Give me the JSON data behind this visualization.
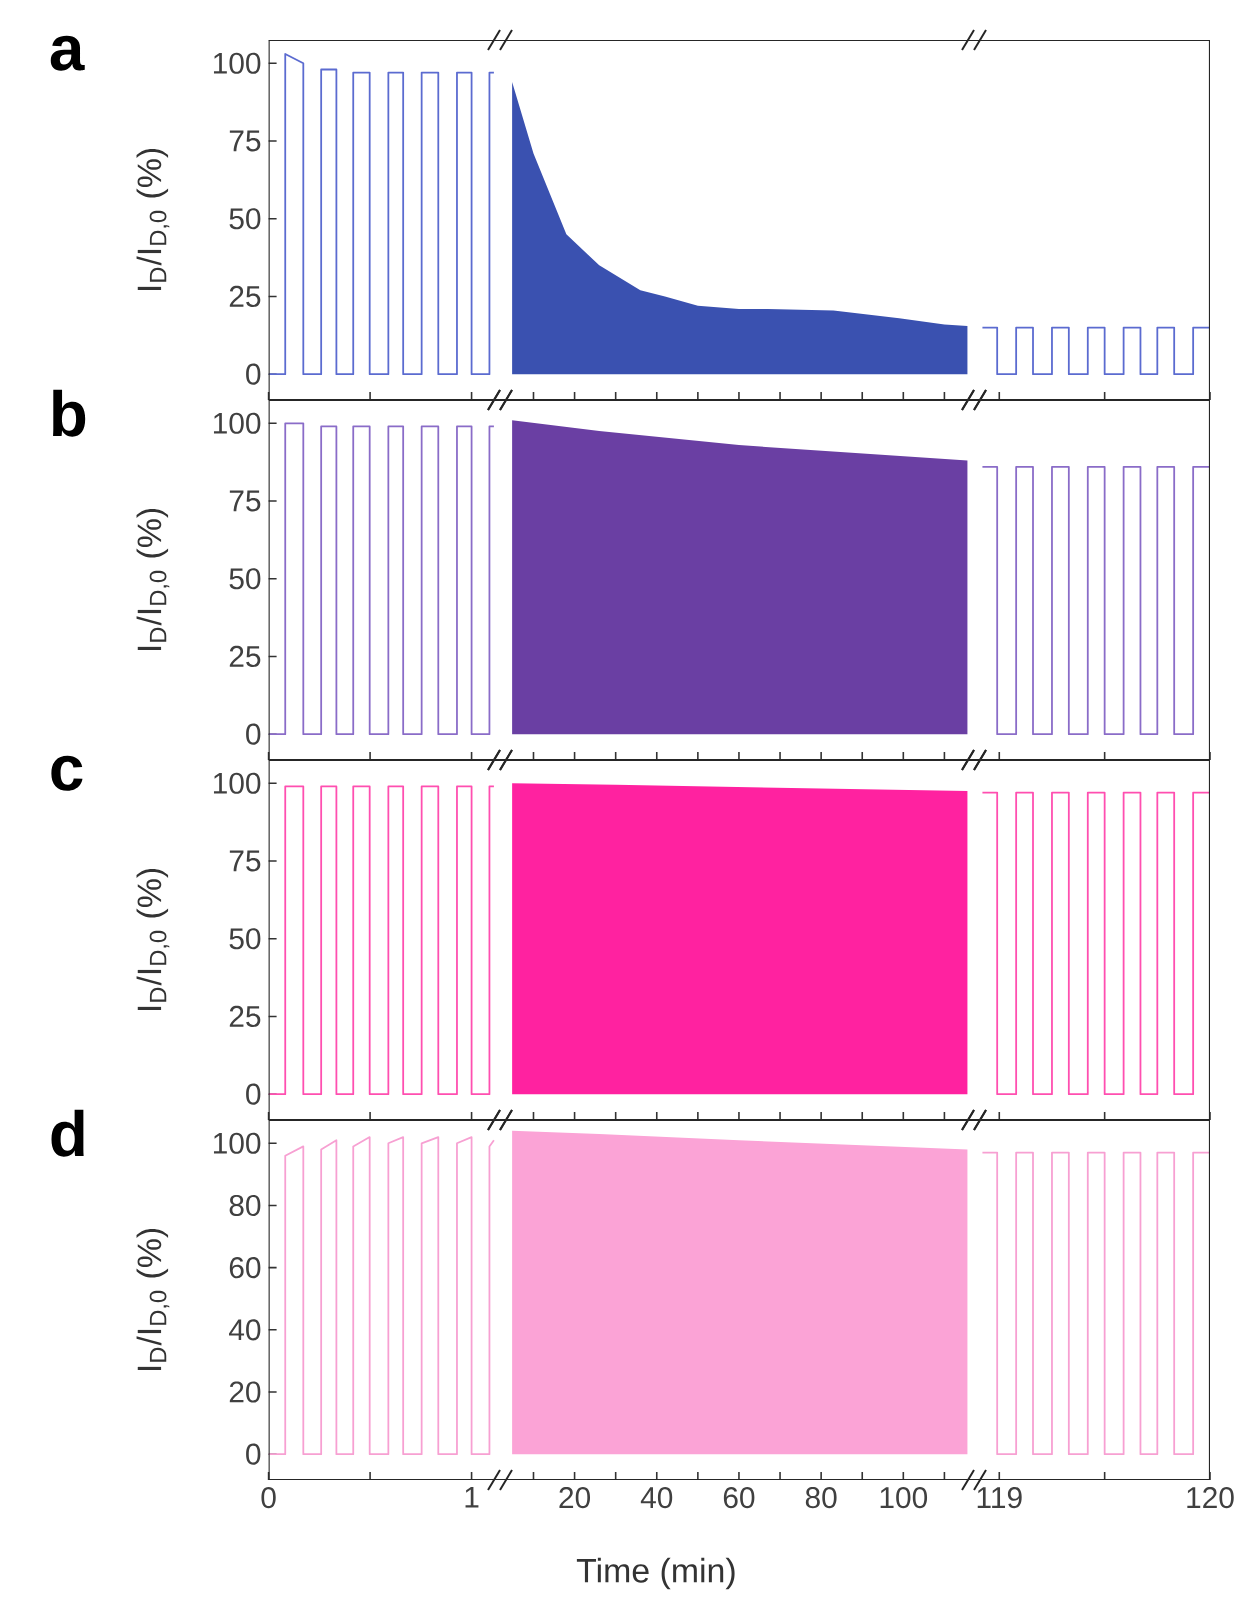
{
  "chart_data": [
    {
      "type": "line",
      "title": "a",
      "ylabel": "I$_{D}$/I$_{D,0}$ (%)",
      "x": [
        0,
        0.082,
        0.082,
        0.171,
        0.171,
        0.259,
        0.259,
        0.334,
        0.334,
        0.417,
        0.417,
        0.498,
        0.498,
        0.59,
        0.59,
        0.663,
        0.663,
        0.754,
        0.754,
        0.836,
        0.836,
        0.928,
        0.928,
        1.0,
        1.0,
        1.088,
        1.088,
        1.11
      ],
      "series": [
        {
          "color": "#5b6bd0",
          "values": [
            0,
            0,
            103,
            100,
            0,
            0,
            98,
            98,
            0,
            0,
            97,
            97,
            0,
            0,
            97,
            97,
            0,
            0,
            97,
            97,
            0,
            0,
            97,
            97,
            0,
            0,
            97,
            97
          ]
        }
      ],
      "xlim": [
        0,
        1.14
      ],
      "ylim": [
        -8.3,
        107.5
      ],
      "xticks": [
        0,
        {
          "value": 0.5,
          "label": null
        },
        1
      ],
      "yticks": [
        0,
        25,
        50,
        75,
        100
      ],
      "tick_labels": "y"
    },
    {
      "type": "area",
      "x": [
        4.8,
        10,
        18,
        26,
        36,
        42,
        50,
        60,
        67,
        83,
        99,
        110,
        115.6
      ],
      "series": [
        {
          "color": "#3a51b0",
          "values": [
            94,
            71,
            45,
            35,
            27,
            25,
            22,
            21,
            21,
            20.5,
            18,
            16,
            15.5
          ]
        }
      ],
      "xlim": [
        1.85,
        117.2
      ],
      "ylim": [
        -8.3,
        107.5
      ],
      "xticks": [
        {
          "value": 10,
          "label": null
        },
        20,
        {
          "value": 30,
          "label": null
        },
        40,
        {
          "value": 50,
          "label": null
        },
        60,
        {
          "value": 70,
          "label": null
        },
        80,
        {
          "value": 90,
          "label": null
        },
        100,
        {
          "value": 110,
          "label": null
        }
      ],
      "yticks": [
        0,
        25,
        50,
        75,
        100
      ],
      "tick_labels": false
    },
    {
      "type": "line",
      "x": [
        118.92,
        118.99,
        118.99,
        119.08,
        119.08,
        119.16,
        119.16,
        119.25,
        119.25,
        119.33,
        119.33,
        119.42,
        119.42,
        119.5,
        119.5,
        119.59,
        119.59,
        119.67,
        119.67,
        119.75,
        119.75,
        119.83,
        119.83,
        119.92,
        119.92,
        120
      ],
      "series": [
        {
          "color": "#5b6bd0",
          "values": [
            15,
            15,
            0,
            0,
            15,
            15,
            0,
            0,
            15,
            15,
            0,
            0,
            15,
            15,
            0,
            0,
            15,
            15,
            0,
            0,
            15,
            15,
            0,
            0,
            15,
            15
          ]
        }
      ],
      "xlim": [
        118.88,
        120
      ],
      "ylim": [
        -8.3,
        107.5
      ],
      "xticks": [
        119,
        {
          "value": 119.5,
          "label": null
        },
        120
      ],
      "yticks": [
        0,
        25,
        50,
        75,
        100
      ],
      "tick_labels": false
    },
    {
      "type": "line",
      "title": "b",
      "ylabel": "I$_{D}$/I$_{D,0}$ (%)",
      "x": [
        0,
        0.082,
        0.082,
        0.171,
        0.171,
        0.259,
        0.259,
        0.334,
        0.334,
        0.417,
        0.417,
        0.498,
        0.498,
        0.59,
        0.59,
        0.663,
        0.663,
        0.754,
        0.754,
        0.836,
        0.836,
        0.928,
        0.928,
        1.0,
        1.0,
        1.088,
        1.088,
        1.11
      ],
      "series": [
        {
          "color": "#8a6cc8",
          "values": [
            0,
            0,
            100,
            100,
            0,
            0,
            99,
            99,
            0,
            0,
            99,
            99,
            0,
            0,
            99,
            99,
            0,
            0,
            99,
            99,
            0,
            0,
            99,
            99,
            0,
            0,
            99,
            99
          ]
        }
      ],
      "xlim": [
        0,
        1.14
      ],
      "ylim": [
        -8.3,
        107.5
      ],
      "xticks": [
        0,
        {
          "value": 0.5,
          "label": null
        },
        1
      ],
      "yticks": [
        0,
        25,
        50,
        75,
        100
      ],
      "tick_labels": "y"
    },
    {
      "type": "area",
      "x": [
        4.8,
        26,
        60,
        115.6
      ],
      "series": [
        {
          "color": "#6a3fa3",
          "values": [
            101,
            97.5,
            93,
            88
          ]
        }
      ],
      "xlim": [
        1.85,
        117.2
      ],
      "ylim": [
        -8.3,
        107.5
      ],
      "xticks": [
        {
          "value": 10,
          "label": null
        },
        20,
        {
          "value": 30,
          "label": null
        },
        40,
        {
          "value": 50,
          "label": null
        },
        60,
        {
          "value": 70,
          "label": null
        },
        80,
        {
          "value": 90,
          "label": null
        },
        100,
        {
          "value": 110,
          "label": null
        }
      ],
      "yticks": [
        0,
        25,
        50,
        75,
        100
      ],
      "tick_labels": false
    },
    {
      "type": "line",
      "x": [
        118.92,
        118.99,
        118.99,
        119.08,
        119.08,
        119.16,
        119.16,
        119.25,
        119.25,
        119.33,
        119.33,
        119.42,
        119.42,
        119.5,
        119.5,
        119.59,
        119.59,
        119.67,
        119.67,
        119.75,
        119.75,
        119.83,
        119.83,
        119.92,
        119.92,
        120
      ],
      "series": [
        {
          "color": "#8a6cc8",
          "values": [
            86,
            86,
            0,
            0,
            86,
            86,
            0,
            0,
            86,
            86,
            0,
            0,
            86,
            86,
            0,
            0,
            86,
            86,
            0,
            0,
            86,
            86,
            0,
            0,
            86,
            86
          ]
        }
      ],
      "xlim": [
        118.88,
        120
      ],
      "ylim": [
        -8.3,
        107.5
      ],
      "xticks": [
        119,
        {
          "value": 119.5,
          "label": null
        },
        120
      ],
      "yticks": [
        0,
        25,
        50,
        75,
        100
      ],
      "tick_labels": false
    },
    {
      "type": "line",
      "title": "c",
      "ylabel": "I$_{D}$/I$_{D,0}$ (%)",
      "x": [
        0,
        0.082,
        0.082,
        0.171,
        0.171,
        0.259,
        0.259,
        0.334,
        0.334,
        0.417,
        0.417,
        0.498,
        0.498,
        0.59,
        0.59,
        0.663,
        0.663,
        0.754,
        0.754,
        0.836,
        0.836,
        0.928,
        0.928,
        1.0,
        1.0,
        1.088,
        1.088,
        1.11
      ],
      "series": [
        {
          "color": "#ff4fb0",
          "values": [
            0,
            0,
            99,
            99,
            0,
            0,
            99,
            99,
            0,
            0,
            99,
            99,
            0,
            0,
            99,
            99,
            0,
            0,
            99,
            99,
            0,
            0,
            99,
            99,
            0,
            0,
            99,
            99
          ]
        }
      ],
      "xlim": [
        0,
        1.14
      ],
      "ylim": [
        -8.3,
        107.5
      ],
      "xticks": [
        0,
        {
          "value": 0.5,
          "label": null
        },
        1
      ],
      "yticks": [
        0,
        25,
        50,
        75,
        100
      ],
      "tick_labels": "y"
    },
    {
      "type": "area",
      "x": [
        4.8,
        30,
        115.6
      ],
      "series": [
        {
          "color": "#ff22a0",
          "values": [
            100,
            99.5,
            97.5
          ]
        }
      ],
      "xlim": [
        1.85,
        117.2
      ],
      "ylim": [
        -8.3,
        107.5
      ],
      "xticks": [
        {
          "value": 10,
          "label": null
        },
        20,
        {
          "value": 30,
          "label": null
        },
        40,
        {
          "value": 50,
          "label": null
        },
        60,
        {
          "value": 70,
          "label": null
        },
        80,
        {
          "value": 90,
          "label": null
        },
        100,
        {
          "value": 110,
          "label": null
        }
      ],
      "yticks": [
        0,
        25,
        50,
        75,
        100
      ],
      "tick_labels": false
    },
    {
      "type": "line",
      "x": [
        118.92,
        118.99,
        118.99,
        119.08,
        119.08,
        119.16,
        119.16,
        119.25,
        119.25,
        119.33,
        119.33,
        119.42,
        119.42,
        119.5,
        119.5,
        119.59,
        119.59,
        119.67,
        119.67,
        119.75,
        119.75,
        119.83,
        119.83,
        119.92,
        119.92,
        120
      ],
      "series": [
        {
          "color": "#ff4fb0",
          "values": [
            97,
            97,
            0,
            0,
            97,
            97,
            0,
            0,
            97,
            97,
            0,
            0,
            97,
            97,
            0,
            0,
            97,
            97,
            0,
            0,
            97,
            97,
            0,
            0,
            97,
            97
          ]
        }
      ],
      "xlim": [
        118.88,
        120
      ],
      "ylim": [
        -8.3,
        107.5
      ],
      "xticks": [
        119,
        {
          "value": 119.5,
          "label": null
        },
        120
      ],
      "yticks": [
        0,
        25,
        50,
        75,
        100
      ],
      "tick_labels": false
    },
    {
      "type": "line",
      "title": "d",
      "ylabel": "I$_{D}$/I$_{D,0}$ (%)",
      "x": [
        0,
        0.082,
        0.082,
        0.171,
        0.171,
        0.259,
        0.259,
        0.334,
        0.334,
        0.417,
        0.417,
        0.498,
        0.498,
        0.59,
        0.59,
        0.663,
        0.663,
        0.754,
        0.754,
        0.836,
        0.836,
        0.928,
        0.928,
        1.0,
        1.0,
        1.088,
        1.088,
        1.11
      ],
      "series": [
        {
          "color": "#f7a0d2",
          "values": [
            0,
            0,
            96,
            99,
            0,
            0,
            98,
            101,
            0,
            0,
            99,
            102,
            0,
            0,
            100,
            102,
            0,
            0,
            100,
            102,
            0,
            0,
            100,
            102,
            0,
            0,
            99,
            101
          ]
        }
      ],
      "xlim": [
        0,
        1.14
      ],
      "ylim": [
        -8.3,
        107.5
      ],
      "xticks": [
        0,
        {
          "value": 0.5,
          "label": null
        },
        1
      ],
      "yticks": [
        0,
        20,
        40,
        60,
        80,
        100
      ]
    },
    {
      "type": "area",
      "xlabel": "Time (min)",
      "x": [
        4.8,
        26,
        60,
        115.6
      ],
      "series": [
        {
          "color": "#fba3d6",
          "values": [
            104,
            103,
            101,
            98
          ]
        }
      ],
      "xlim": [
        1.85,
        117.2
      ],
      "ylim": [
        -8.3,
        107.5
      ],
      "xticks": [
        {
          "value": 10,
          "label": null
        },
        20,
        {
          "value": 30,
          "label": null
        },
        40,
        {
          "value": 50,
          "label": null
        },
        60,
        {
          "value": 70,
          "label": null
        },
        80,
        {
          "value": 90,
          "label": null
        },
        100,
        {
          "value": 110,
          "label": null
        }
      ],
      "yticks": [
        0,
        20,
        40,
        60,
        80,
        100
      ],
      "tick_labels": "x"
    },
    {
      "type": "line",
      "x": [
        118.92,
        118.99,
        118.99,
        119.08,
        119.08,
        119.16,
        119.16,
        119.25,
        119.25,
        119.33,
        119.33,
        119.42,
        119.42,
        119.5,
        119.5,
        119.59,
        119.59,
        119.67,
        119.67,
        119.75,
        119.75,
        119.83,
        119.83,
        119.92,
        119.92,
        120
      ],
      "series": [
        {
          "color": "#f7a0d2",
          "values": [
            97,
            97,
            0,
            0,
            97,
            97,
            0,
            0,
            97,
            97,
            0,
            0,
            97,
            97,
            0,
            0,
            97,
            97,
            0,
            0,
            97,
            97,
            0,
            0,
            97,
            97
          ]
        }
      ],
      "xlim": [
        118.88,
        120
      ],
      "ylim": [
        -8.3,
        107.5
      ],
      "xticks": [
        119,
        {
          "value": 119.5,
          "label": null
        },
        120
      ],
      "yticks": [
        0,
        20,
        40,
        60,
        80,
        100
      ],
      "tick_labels": "x"
    }
  ]
}
